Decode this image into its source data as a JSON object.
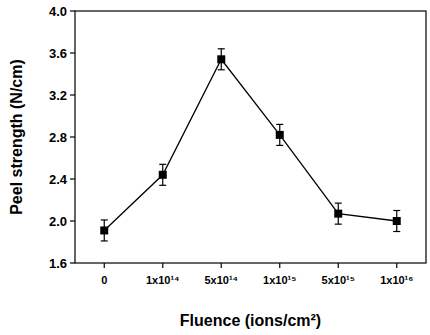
{
  "chart_data": {
    "type": "line",
    "x_label": "Fluence (ions/cm²)",
    "y_label": "Peel strength (N/cm)",
    "categories": [
      "0",
      "1x10¹⁴",
      "5x10¹⁴",
      "1x10¹⁵",
      "5x10¹⁵",
      "1x10¹⁶"
    ],
    "values": [
      1.91,
      2.44,
      3.54,
      2.82,
      2.07,
      2.0
    ],
    "errors": [
      0.1,
      0.1,
      0.1,
      0.1,
      0.1,
      0.1
    ],
    "color": "#000000",
    "marker": "square",
    "line_style": "solid",
    "ylim": [
      1.6,
      4.0
    ],
    "yticks": [
      1.6,
      {
        "value": 2.0,
        "label": "2.0"
      },
      2.4,
      2.8,
      3.2,
      3.6,
      {
        "value": 4.0,
        "label": "4.0"
      }
    ],
    "grid": false
  }
}
